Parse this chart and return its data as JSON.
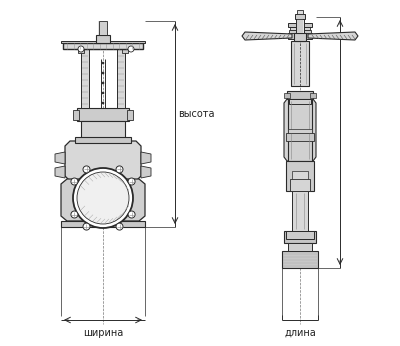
{
  "bg_color": "#ffffff",
  "line_color": "#2a2a2a",
  "dim_color": "#2a2a2a",
  "gray_fill": "#e0e0e0",
  "dark_gray": "#aaaaaa",
  "mid_gray": "#888888",
  "hatch_color": "#555555",
  "label_shirna": "ширина",
  "label_dlina": "длина",
  "label_vysota": "высота",
  "figsize": [
    4.0,
    3.46
  ],
  "dpi": 100
}
